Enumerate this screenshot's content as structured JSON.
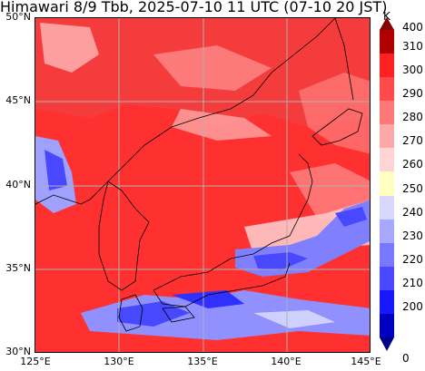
{
  "title": "Himawari 8/9 Tbb, 2025-07-10 11 UTC (07-10 20 JST)",
  "lat_labels": [
    "50°N",
    "45°N",
    "40°N",
    "35°N",
    "30°N"
  ],
  "lon_labels": [
    "125°E",
    "130°E",
    "135°E",
    "140°E",
    "145°E"
  ],
  "colorbar": {
    "unit": "K",
    "tick_labels": [
      "400",
      "310",
      "300",
      "290",
      "280",
      "270",
      "260",
      "250",
      "240",
      "230",
      "220",
      "210",
      "200",
      "0"
    ],
    "colors": [
      "#b00000",
      "#ff2020",
      "#ff4a4a",
      "#ff7878",
      "#ffa8a8",
      "#ffd4d4",
      "#ffffc0",
      "#d8d8ff",
      "#a8a8ff",
      "#7878ff",
      "#4848ff",
      "#1818ff",
      "#0000c0"
    ],
    "over_color": "#800000",
    "under_color": "#00008b"
  },
  "colors": {
    "background_red": "#f03232",
    "warm_red": "#ff4a4a",
    "pink": "#ffa8a8",
    "cold_blue": "#7878ff"
  }
}
